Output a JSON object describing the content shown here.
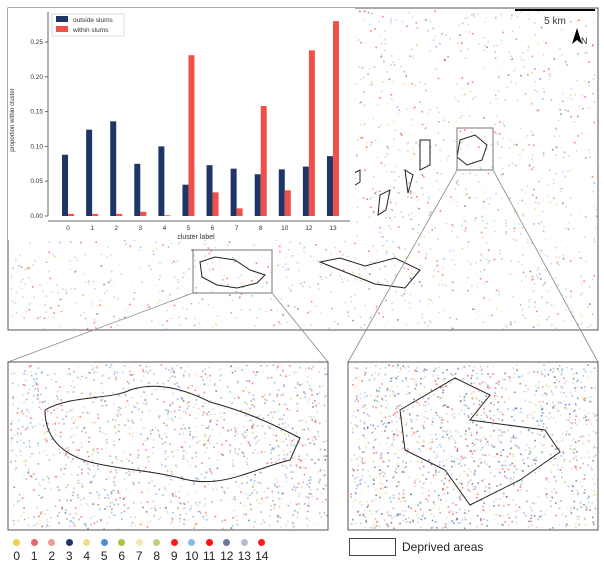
{
  "scale_bar": {
    "label": "5 km"
  },
  "north_arrow": {
    "label": "N"
  },
  "chart_data": {
    "type": "bar",
    "categories": [
      "0",
      "1",
      "2",
      "3",
      "4",
      "5",
      "6",
      "7",
      "8",
      "10",
      "12",
      "13"
    ],
    "series": [
      {
        "name": "outside slums",
        "color": "#1f3566",
        "values": [
          0.088,
          0.124,
          0.136,
          0.075,
          0.1,
          0.045,
          0.073,
          0.068,
          0.06,
          0.067,
          0.071,
          0.086
        ]
      },
      {
        "name": "within slums",
        "color": "#f0504a",
        "values": [
          0.003,
          0.003,
          0.003,
          0.006,
          0.001,
          0.231,
          0.034,
          0.011,
          0.158,
          0.037,
          0.238,
          0.28
        ]
      }
    ],
    "xlabel": "cluster label",
    "ylabel": "proportion within cluster",
    "yticks": [
      "0.00",
      "0.05",
      "0.10",
      "0.15",
      "0.20",
      "0.25"
    ],
    "ylim": [
      0,
      0.28
    ],
    "legend": "top-left"
  },
  "cluster_legend": [
    {
      "label": "0",
      "color": "#f2d04a"
    },
    {
      "label": "1",
      "color": "#e86a6a"
    },
    {
      "label": "2",
      "color": "#f09a96"
    },
    {
      "label": "3",
      "color": "#1f3566"
    },
    {
      "label": "4",
      "color": "#f0dd80"
    },
    {
      "label": "5",
      "color": "#4a90d9"
    },
    {
      "label": "6",
      "color": "#a8c43a"
    },
    {
      "label": "7",
      "color": "#f5e8b8"
    },
    {
      "label": "8",
      "color": "#bcd27a"
    },
    {
      "label": "9",
      "color": "#ff1a1a"
    },
    {
      "label": "10",
      "color": "#8ab8ea"
    },
    {
      "label": "11",
      "color": "#ff1010"
    },
    {
      "label": "12",
      "color": "#6b7a9a"
    },
    {
      "label": "13",
      "color": "#b4bccd"
    },
    {
      "label": "14",
      "color": "#ff1a1a"
    }
  ],
  "deprived_legend": {
    "label": "Deprived areas"
  }
}
